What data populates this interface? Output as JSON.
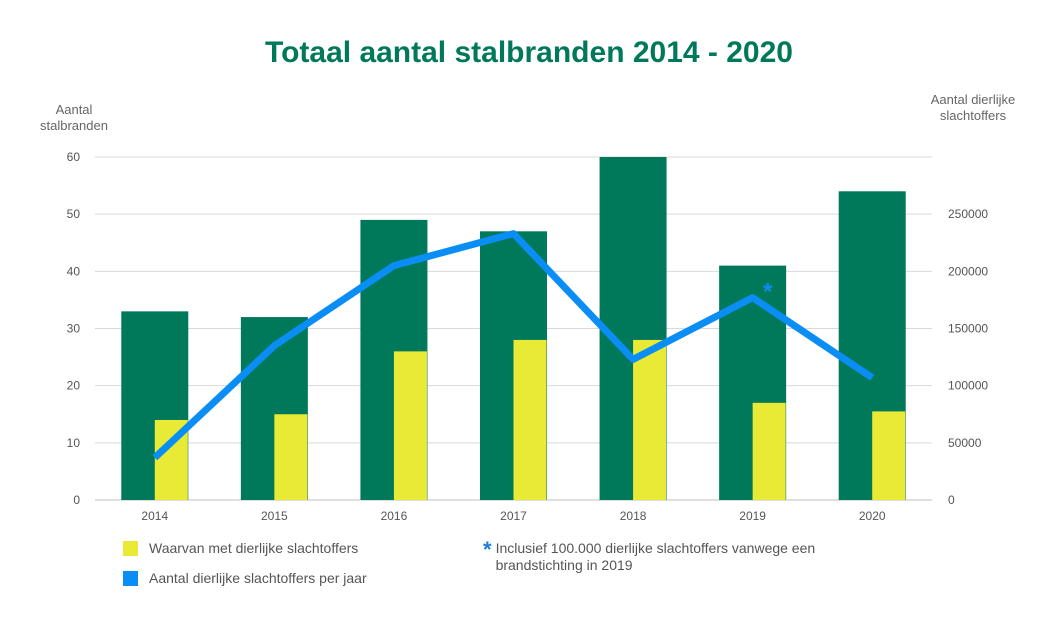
{
  "chart_data": {
    "type": "bar",
    "title": "Totaal aantal stalbranden 2014 - 2020",
    "categories": [
      "2014",
      "2015",
      "2016",
      "2017",
      "2018",
      "2019",
      "2020"
    ],
    "y_left": {
      "label": "Aantal stalbranden",
      "ylim": [
        0,
        60
      ],
      "ticks": [
        "0",
        "10",
        "20",
        "30",
        "40",
        "50",
        "60"
      ]
    },
    "y_right": {
      "label": "Aantal dierlijke slachtoffers",
      "ylim": [
        0,
        300000
      ],
      "ticks": [
        "0",
        "50000",
        "100000",
        "150000",
        "200000",
        "250000"
      ]
    },
    "grid": true,
    "series": [
      {
        "type": "bar",
        "values": [
          33,
          32,
          49,
          47,
          60,
          41,
          54
        ],
        "color": "#00785a",
        "axis": "left"
      },
      {
        "type": "bar",
        "name": "Waarvan met dierlijke slachtoffers",
        "values": [
          14,
          15,
          26,
          28,
          28,
          17,
          15.5
        ],
        "color": "#e8ea35",
        "axis": "left"
      },
      {
        "type": "line",
        "name": "Aantal dierlijke slachtoffers per jaar",
        "values": [
          37000,
          135000,
          205000,
          233000,
          123000,
          177000,
          107000
        ],
        "color": "#0a8ef5",
        "axis": "right"
      }
    ],
    "annotations": [
      {
        "category": "2019",
        "marker": "*",
        "series": "Aantal dierlijke slachtoffers per jaar"
      }
    ],
    "legend_position": "bottom-left"
  },
  "footnote": {
    "marker": "*",
    "text": "Inclusief 100.000 dierlijke slachtoffers vanwege een brandstichting in 2019"
  }
}
